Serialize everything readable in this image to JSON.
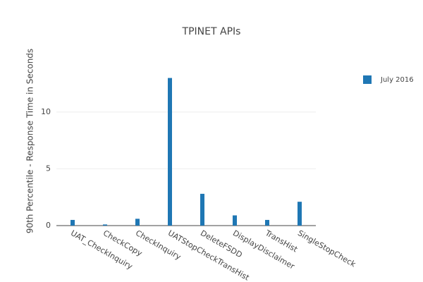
{
  "chart_data": {
    "type": "bar",
    "title": "TPINET APIs",
    "y_label": "90th Percentile - Response Time in Seconds",
    "categories": [
      "UAT_CheckInquiry",
      "CheckCopy",
      "CheckInquiry",
      "UATStopCheckTransHist",
      "DeleteFSDD",
      "DisplayDisclaimer",
      "TransHist",
      "SingleStopCheck"
    ],
    "series": [
      {
        "name": "July 2016",
        "color": "#1f77b4",
        "values": [
          0.5,
          0.1,
          0.6,
          13.0,
          2.8,
          0.9,
          0.5,
          2.1
        ]
      }
    ],
    "ylim": [
      0,
      14.9
    ],
    "yticks": [
      0,
      5,
      10
    ],
    "grid": true,
    "legend": "top-right"
  }
}
